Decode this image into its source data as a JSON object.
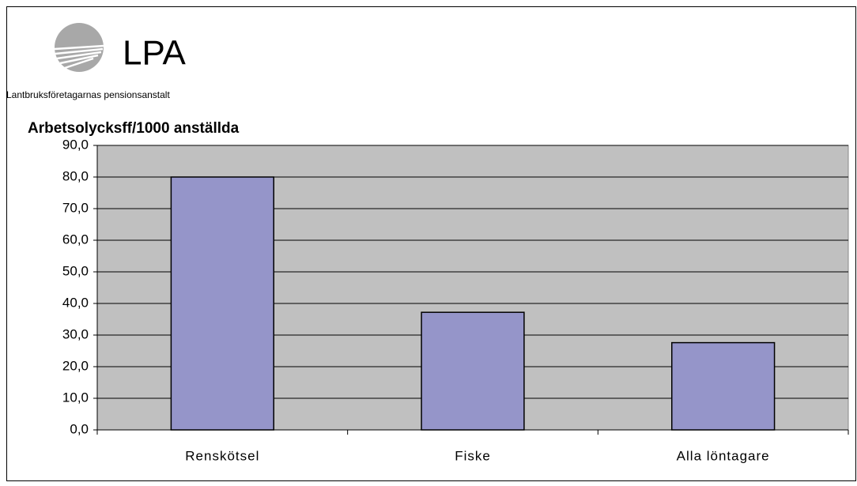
{
  "logo": {
    "name": "LPA",
    "tagline": "Lantbruksföretagarnas pensionsanstalt"
  },
  "chart_data": {
    "type": "bar",
    "title": "Arbetsolycksff/1000 anställda",
    "categories": [
      "Renskötsel",
      "Fiske",
      "Alla löntagare"
    ],
    "values": [
      80.0,
      37.2,
      27.6
    ],
    "color": "#9595c9",
    "ylim": [
      0,
      90
    ],
    "yticks": [
      {
        "value": 0,
        "label": "0,0"
      },
      {
        "value": 10,
        "label": "10,0"
      },
      {
        "value": 20,
        "label": "20,0"
      },
      {
        "value": 30,
        "label": "30,0"
      },
      {
        "value": 40,
        "label": "40,0"
      },
      {
        "value": 50,
        "label": "50,0"
      },
      {
        "value": 60,
        "label": "60,0"
      },
      {
        "value": 70,
        "label": "70,0"
      },
      {
        "value": 80,
        "label": "80,0"
      },
      {
        "value": 90,
        "label": "90,0"
      }
    ],
    "grid": true
  }
}
